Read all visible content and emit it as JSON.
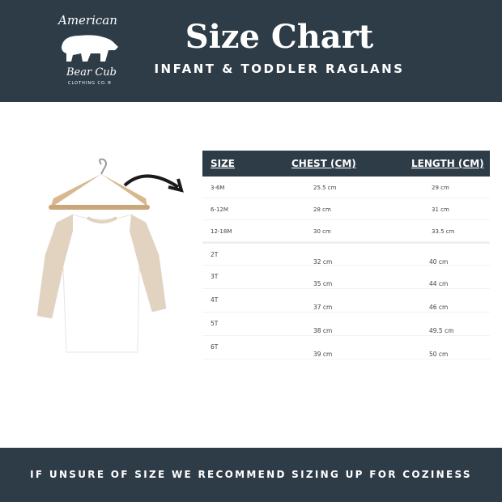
{
  "brand": {
    "line1": "American",
    "line2": "Bear Cub",
    "line3": "CLOTHING CO.®"
  },
  "header": {
    "title": "Size Chart",
    "subtitle": "INFANT & TODDLER RAGLANS"
  },
  "table": {
    "headers": [
      "SIZE",
      "CHEST (CM)",
      "LENGTH (CM)"
    ],
    "rows": [
      [
        "3-6M",
        "25.5 cm",
        "29 cm"
      ],
      [
        "6-12M",
        "28 cm",
        "31 cm"
      ],
      [
        "12-18M",
        "30 cm",
        "33.5 cm"
      ],
      [
        "2T",
        "32 cm",
        "40 cm"
      ],
      [
        "3T",
        "35 cm",
        "44 cm"
      ],
      [
        "4T",
        "37 cm",
        "46 cm"
      ],
      [
        "5T",
        "38 cm",
        "49.5 cm"
      ],
      [
        "6T",
        "39 cm",
        "50 cm"
      ]
    ]
  },
  "footer": {
    "text": "IF UNSURE OF SIZE WE RECOMMEND SIZING UP FOR COZINESS"
  },
  "colors": {
    "navy": "#2e3c48",
    "sleeve": "#e2d2c0"
  }
}
